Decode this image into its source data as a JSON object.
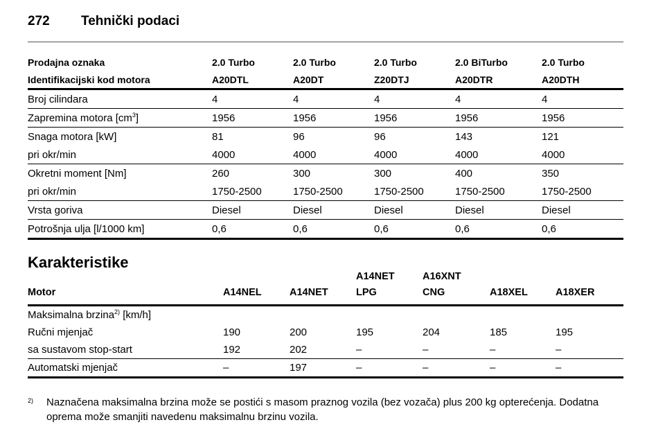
{
  "header": {
    "page": "272",
    "title": "Tehnički podaci"
  },
  "table1": {
    "header": [
      [
        "Prodajna oznaka",
        "2.0 Turbo",
        "2.0 Turbo",
        "2.0 Turbo",
        "2.0 BiTurbo",
        "2.0 Turbo"
      ],
      [
        "Identifikacijski kod motora",
        "A20DTL",
        "A20DT",
        "Z20DTJ",
        "A20DTR",
        "A20DTH"
      ]
    ],
    "groups": [
      [
        {
          "label": "Broj cilindara",
          "values": [
            "4",
            "4",
            "4",
            "4",
            "4"
          ]
        }
      ],
      [
        {
          "label": {
            "text": "Zapremina motora [cm",
            "sup": "3",
            "after": "]"
          },
          "values": [
            "1956",
            "1956",
            "1956",
            "1956",
            "1956"
          ]
        }
      ],
      [
        {
          "label": "Snaga motora [kW]",
          "values": [
            "81",
            "96",
            "96",
            "143",
            "121"
          ]
        },
        {
          "label": "pri okr/min",
          "values": [
            "4000",
            "4000",
            "4000",
            "4000",
            "4000"
          ]
        }
      ],
      [
        {
          "label": "Okretni moment [Nm]",
          "values": [
            "260",
            "300",
            "300",
            "400",
            "350"
          ]
        },
        {
          "label": "pri okr/min",
          "values": [
            "1750-2500",
            "1750-2500",
            "1750-2500",
            "1750-2500",
            "1750-2500"
          ]
        }
      ],
      [
        {
          "label": "Vrsta goriva",
          "values": [
            "Diesel",
            "Diesel",
            "Diesel",
            "Diesel",
            "Diesel"
          ]
        }
      ],
      [
        {
          "label": "Potrošnja ulja [l/1000 km]",
          "values": [
            "0,6",
            "0,6",
            "0,6",
            "0,6",
            "0,6"
          ]
        }
      ]
    ]
  },
  "section_title": "Karakteristike",
  "table2": {
    "header": {
      "label": "Motor",
      "columns": [
        [
          "A14NEL"
        ],
        [
          "A14NET"
        ],
        [
          "A14NET",
          "LPG"
        ],
        [
          "A16XNT",
          "CNG"
        ],
        [
          "A18XEL"
        ],
        [
          "A18XER"
        ]
      ]
    },
    "groups": [
      [
        {
          "label": {
            "text": "Maksimalna brzina",
            "sup": "2)",
            "after": " [km/h]"
          }
        },
        {
          "label": "Ručni mjenjač",
          "values": [
            "190",
            "200",
            "195",
            "204",
            "185",
            "195"
          ]
        },
        {
          "label": "sa sustavom stop-start",
          "values": [
            "192",
            "202",
            "–",
            "–",
            "–",
            "–"
          ]
        }
      ],
      [
        {
          "label": "Automatski mjenjač",
          "values": [
            "–",
            "197",
            "–",
            "–",
            "–",
            "–"
          ]
        }
      ]
    ]
  },
  "footnote": {
    "marker": "2)",
    "text": "Naznačena maksimalna brzina može se postići s masom praznog vozila (bez vozača) plus 200 kg opterećenja. Dodatna oprema može smanjiti navedenu maksimalnu brzinu vozila."
  }
}
